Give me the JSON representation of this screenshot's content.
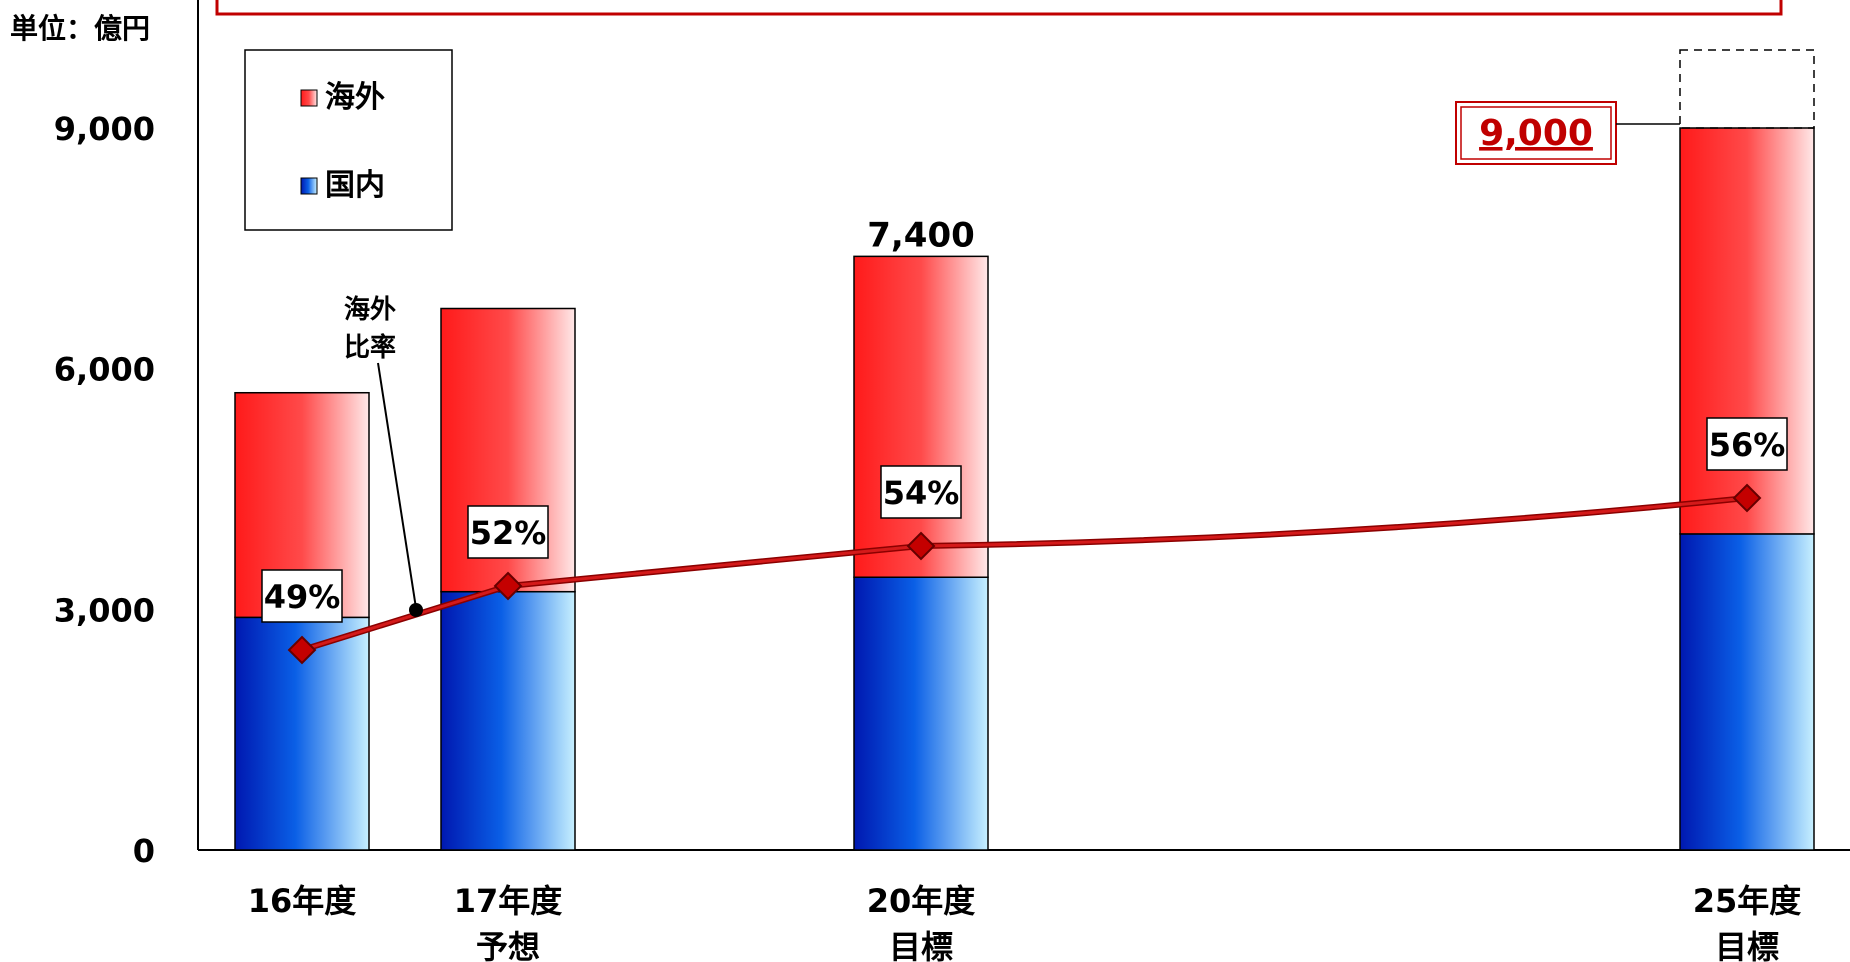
{
  "chart_data": {
    "type": "bar",
    "stacked": true,
    "unit_label": "単位：億円",
    "categories": [
      [
        "16年度"
      ],
      [
        "17年度",
        "予想"
      ],
      [
        "20年度",
        "目標"
      ],
      [
        "25年度",
        "目標"
      ]
    ],
    "series": [
      {
        "name": "国内",
        "values": [
          2900,
          3220,
          3400,
          3940
        ],
        "color": "#0a3fcf"
      },
      {
        "name": "海外",
        "values": [
          2800,
          3530,
          4000,
          5060
        ],
        "color": "#ff2a2a"
      }
    ],
    "totals": [
      5700,
      6750,
      7400,
      9000
    ],
    "total_labels": [
      {
        "index": 2,
        "text": "7,400",
        "boxed": false
      },
      {
        "index": 3,
        "text": "9,000",
        "boxed": true
      }
    ],
    "overseas_ratio": {
      "label_lines": [
        "海外",
        "比率"
      ],
      "values": [
        49,
        52,
        54,
        56
      ],
      "labels": [
        "49%",
        "52%",
        "54%",
        "56%"
      ],
      "color": "#c00000"
    },
    "ylim": [
      0,
      9000
    ],
    "yticks": [
      0,
      3000,
      6000,
      9000
    ],
    "ytick_labels": [
      "0",
      "3,000",
      "6,000",
      "9,000"
    ],
    "legend": [
      "海外",
      "国内"
    ],
    "legend_position": "top-left",
    "target_extension_dashed": true
  }
}
